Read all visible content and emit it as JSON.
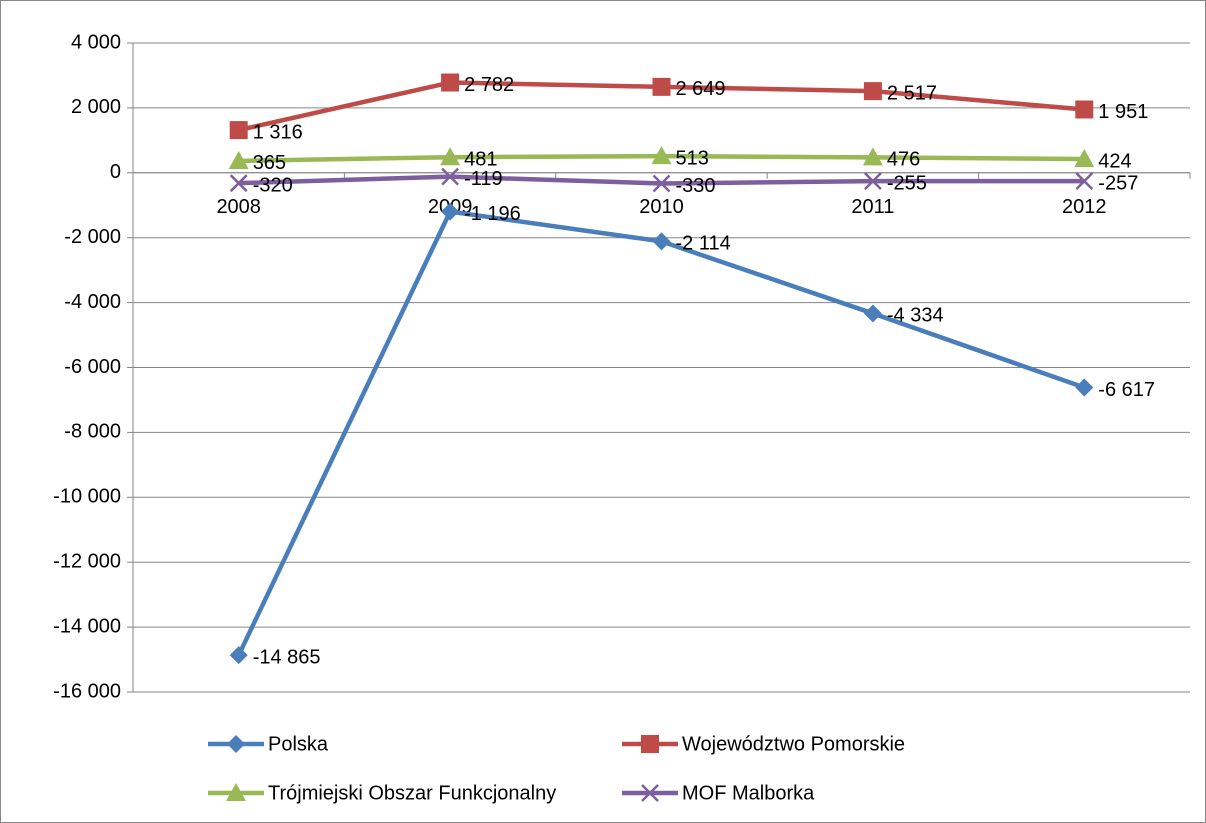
{
  "chart_data": {
    "type": "line",
    "categories": [
      "2008",
      "2009",
      "2010",
      "2011",
      "2012"
    ],
    "series": [
      {
        "name": "Polska",
        "color": "#4a7ebb",
        "marker": "diamond",
        "values": [
          -14865,
          -1196,
          -2114,
          -4334,
          -6617
        ],
        "value_labels": [
          "-14 865",
          "-1 196",
          "-2 114",
          "-4 334",
          "-6 617"
        ]
      },
      {
        "name": "Województwo Pomorskie",
        "color": "#be4b48",
        "marker": "square",
        "values": [
          1316,
          2782,
          2649,
          2517,
          1951
        ],
        "value_labels": [
          "1 316",
          "2 782",
          "2 649",
          "2 517",
          "1 951"
        ]
      },
      {
        "name": "Trójmiejski Obszar Funkcjonalny",
        "color": "#98b954",
        "marker": "triangle",
        "values": [
          365,
          481,
          513,
          476,
          424
        ],
        "value_labels": [
          "365",
          "481",
          "513",
          "476",
          "424"
        ]
      },
      {
        "name": "MOF Malborka",
        "color": "#7d5fa0",
        "marker": "x",
        "values": [
          -320,
          -119,
          -330,
          -255,
          -257
        ],
        "value_labels": [
          "-320",
          "-119",
          "-330",
          "-255",
          "-257"
        ]
      }
    ],
    "ylim": [
      -16000,
      4000
    ],
    "yticks": [
      {
        "value": -16000,
        "label": "-16 000"
      },
      {
        "value": -14000,
        "label": "-14 000"
      },
      {
        "value": -12000,
        "label": "-12 000"
      },
      {
        "value": -10000,
        "label": "-10 000"
      },
      {
        "value": -8000,
        "label": "-8 000"
      },
      {
        "value": -6000,
        "label": "-6 000"
      },
      {
        "value": -4000,
        "label": "-4 000"
      },
      {
        "value": -2000,
        "label": "-2 000"
      },
      0,
      {
        "value": 2000,
        "label": "2 000"
      },
      {
        "value": 4000,
        "label": "4 000"
      }
    ],
    "grid": true,
    "legend": "bottom"
  }
}
